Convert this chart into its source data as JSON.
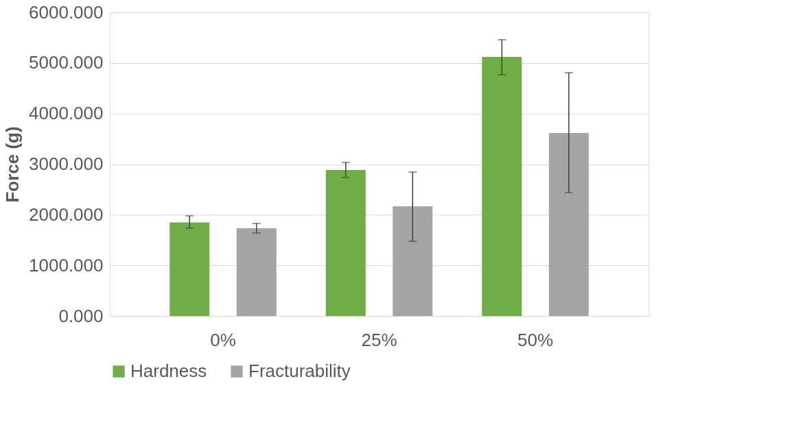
{
  "chart_data": {
    "type": "bar",
    "ylabel": "Force (g)",
    "categories": [
      "0%",
      "25%",
      "50%"
    ],
    "series": [
      {
        "name": "Hardness",
        "color": "#70ad47",
        "values": [
          1850,
          2885,
          5120
        ],
        "errors": [
          [
            1735,
            1978
          ],
          [
            2736,
            3034
          ],
          [
            4768,
            5458
          ]
        ]
      },
      {
        "name": "Fracturability",
        "color": "#a5a5a5",
        "values": [
          1734,
          2167,
          3616
        ],
        "errors": [
          [
            1639,
            1829
          ],
          [
            1476,
            2844
          ],
          [
            2438,
            4808
          ]
        ]
      }
    ],
    "ylim": [
      0,
      6000
    ],
    "yticks": [
      {
        "value": 0,
        "label": "0.000"
      },
      {
        "value": 1000,
        "label": "1000.000"
      },
      {
        "value": 2000,
        "label": "2000.000"
      },
      {
        "value": 3000,
        "label": "3000.000"
      },
      {
        "value": 4000,
        "label": "4000.000"
      },
      {
        "value": 5000,
        "label": "5000.000"
      },
      {
        "value": 6000,
        "label": "6000.000"
      }
    ],
    "grid": "y",
    "legend": "bottom"
  }
}
